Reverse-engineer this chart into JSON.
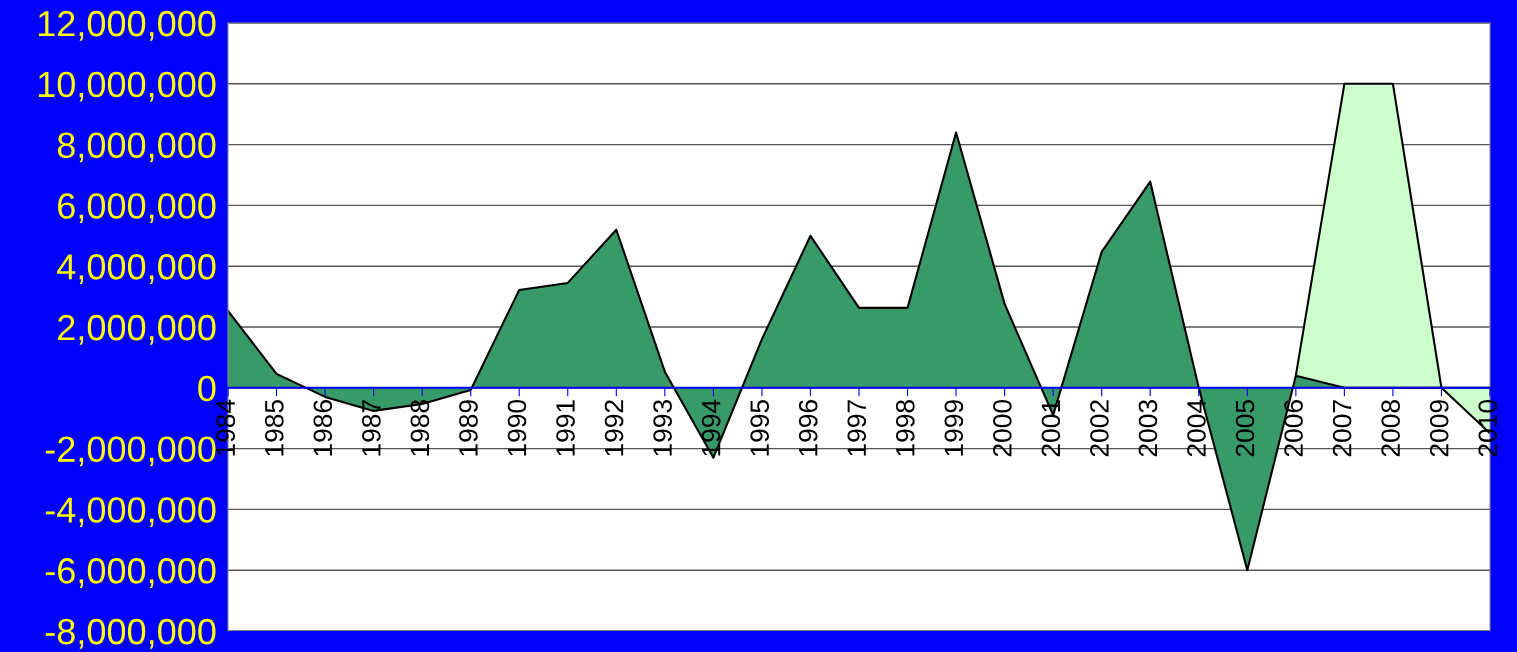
{
  "chart_data": {
    "type": "area",
    "categories": [
      "1984",
      "1985",
      "1986",
      "1987",
      "1988",
      "1989",
      "1990",
      "1991",
      "1992",
      "1993",
      "1994",
      "1995",
      "1996",
      "1997",
      "1998",
      "1999",
      "2000",
      "2001",
      "2002",
      "2003",
      "2004",
      "2005",
      "2006",
      "2007",
      "2008",
      "2009",
      "2010"
    ],
    "series": [
      {
        "color": "#389a68",
        "values": [
          2530000,
          460000,
          -300000,
          -760000,
          -530000,
          -70000,
          3220000,
          3450000,
          5200000,
          530000,
          -2300000,
          1600000,
          5000000,
          2630000,
          2630000,
          8400000,
          2760000,
          -900000,
          4470000,
          6780000,
          0,
          -6000000,
          400000,
          0,
          0,
          0,
          0
        ]
      },
      {
        "color": "#ccffcc",
        "values": [
          null,
          null,
          null,
          null,
          null,
          null,
          null,
          null,
          null,
          null,
          null,
          null,
          null,
          null,
          null,
          null,
          null,
          null,
          null,
          null,
          null,
          null,
          400000,
          10000000,
          10000000,
          0,
          -1500000
        ]
      }
    ],
    "ylim": [
      -8000000,
      12000000
    ],
    "yticks": [
      {
        "value": -8000000,
        "label": "-8,000,000"
      },
      {
        "value": -6000000,
        "label": "-6,000,000"
      },
      {
        "value": -4000000,
        "label": "-4,000,000"
      },
      {
        "value": -2000000,
        "label": "-2,000,000"
      },
      {
        "value": 0,
        "label": "0"
      },
      {
        "value": 2000000,
        "label": "2,000,000"
      },
      {
        "value": 4000000,
        "label": "4,000,000"
      },
      {
        "value": 6000000,
        "label": "6,000,000"
      },
      {
        "value": 8000000,
        "label": "8,000,000"
      },
      {
        "value": 10000000,
        "label": "10,000,000"
      },
      {
        "value": 12000000,
        "label": "12,000,000"
      }
    ],
    "grid": "y"
  }
}
